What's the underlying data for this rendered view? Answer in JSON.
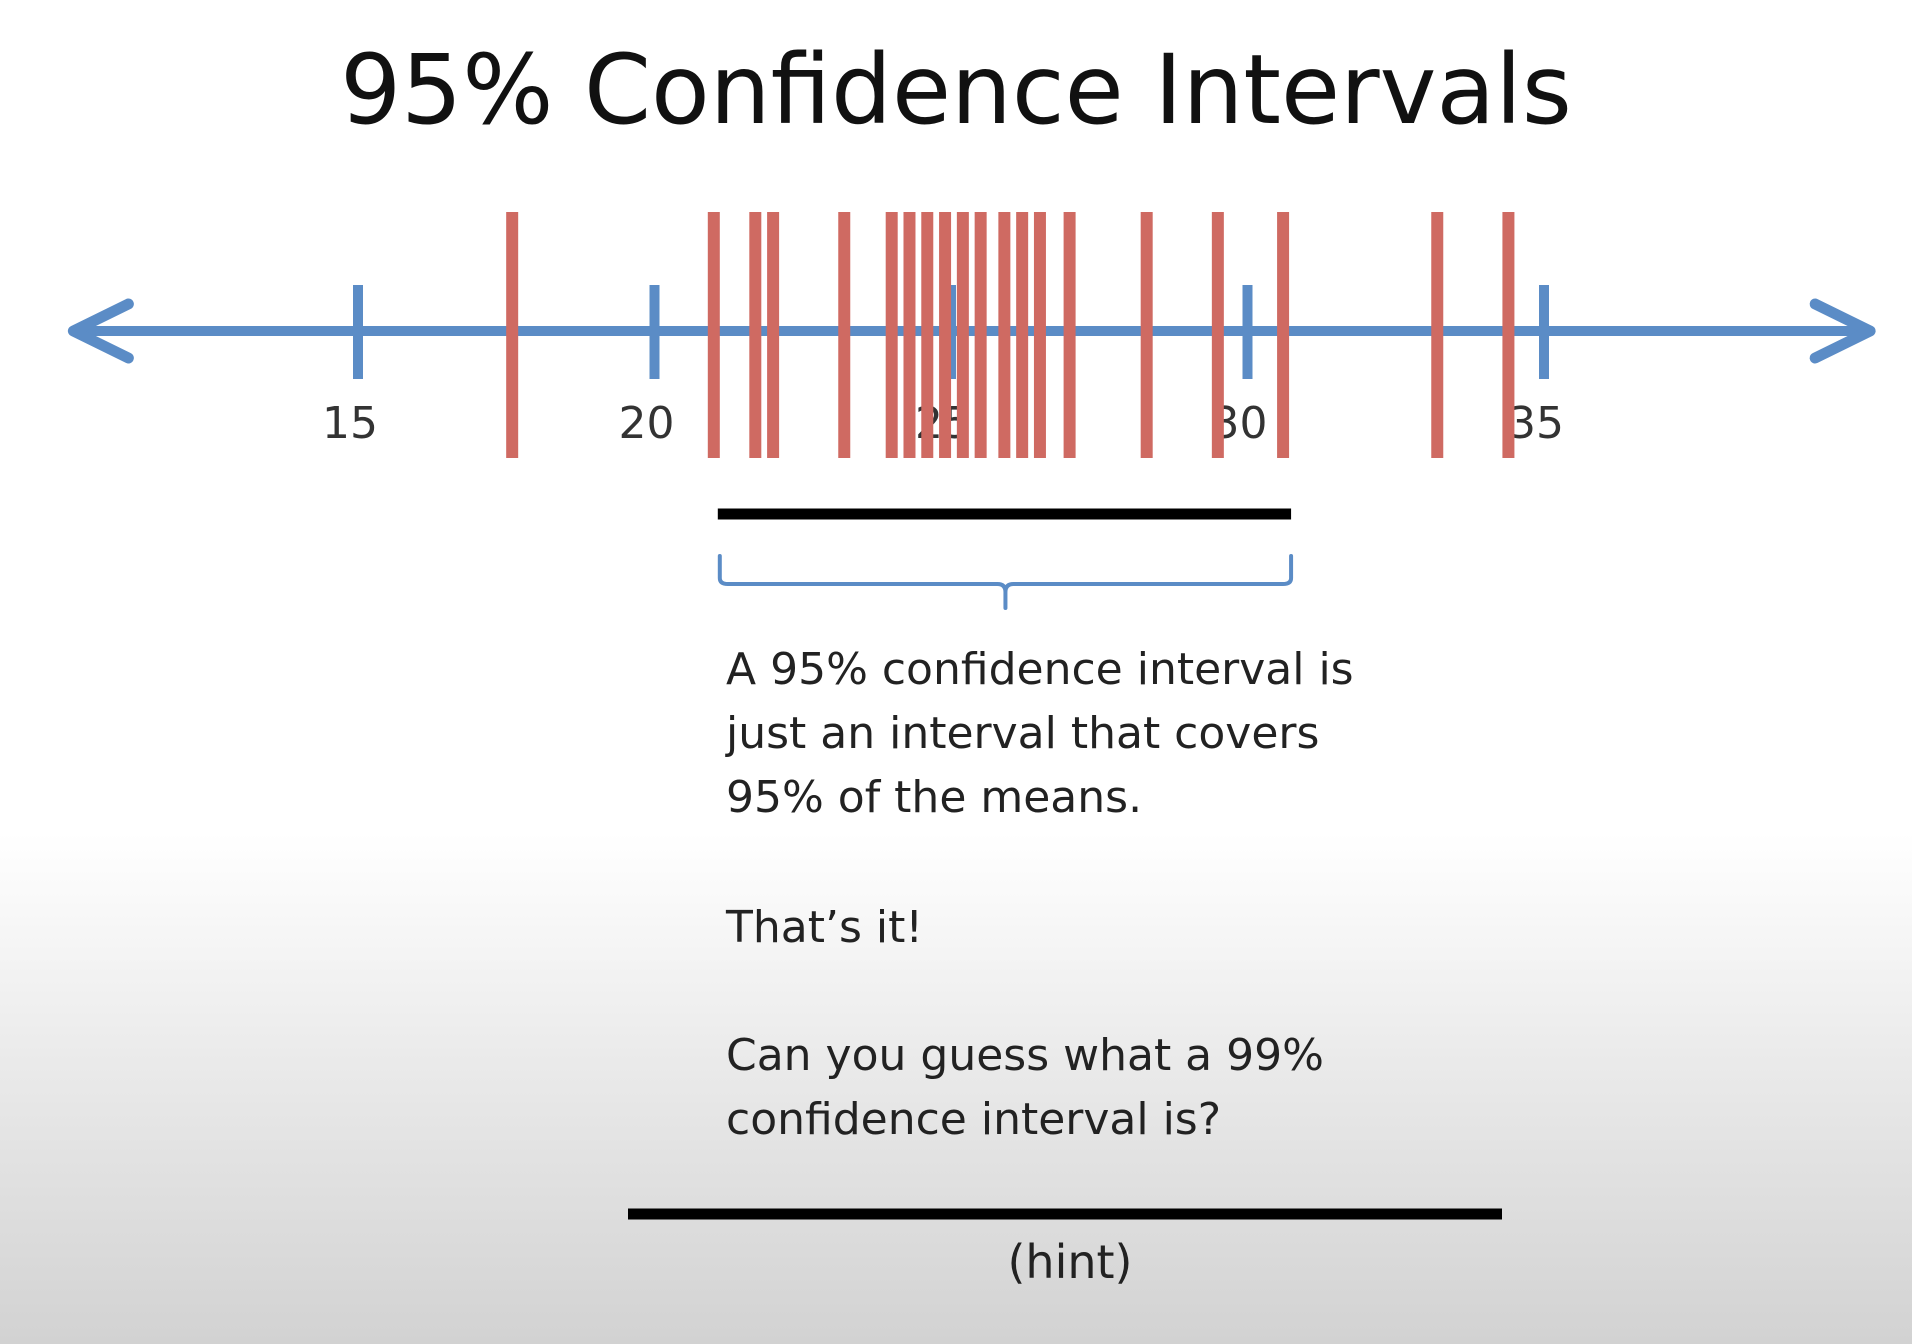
{
  "title": "95% Confidence Intervals",
  "colors": {
    "axis": "#5b8cc6",
    "mean_line": "#cf6a62",
    "interval_bar": "#000000",
    "brace": "#5b8cc6"
  },
  "number_line": {
    "ticks": [
      "15",
      "20",
      "25",
      "30",
      "35"
    ],
    "tick_values": [
      15,
      20,
      25,
      30,
      35
    ],
    "range": [
      10.2,
      40.5
    ],
    "arrows": "both"
  },
  "means": [
    17.6,
    21.0,
    21.7,
    22.0,
    23.2,
    24.0,
    24.3,
    24.6,
    24.9,
    25.2,
    25.5,
    25.9,
    26.2,
    26.5,
    27.0,
    28.3,
    29.5,
    30.6,
    33.2,
    34.4
  ],
  "interval": {
    "start": 21.0,
    "end": 30.6
  },
  "text": {
    "para1_line1": "A 95% confidence interval is",
    "para1_line2": "just an interval that covers",
    "para1_line3": "95% of the means.",
    "para2": "That’s it!",
    "para3_line1": "Can you guess what a 99%",
    "para3_line2": "confidence interval is?",
    "hint": "(hint)"
  }
}
